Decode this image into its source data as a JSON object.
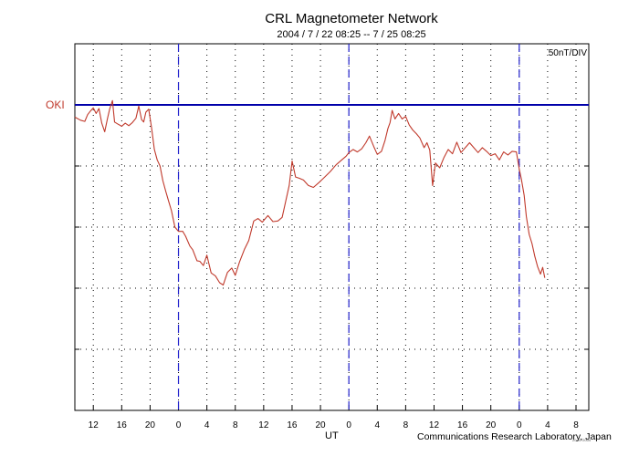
{
  "chart_data": {
    "type": "line",
    "title": "CRL Magnetometer Network",
    "subtitle": "2004 / 7 / 22   08:25 --  7 / 25   08:25",
    "xlabel": "UT",
    "scale_label": "50nT/DIV",
    "credit": "Communications Research Laboratory, Japan",
    "stamp": "20 07 2004",
    "grid": true,
    "x_range_hours": [
      -14.6,
      57.8
    ],
    "y_range_div": [
      -5.0,
      1.0
    ],
    "x_tick_positions_hours": [
      -12,
      -8,
      -4,
      0,
      4,
      8,
      12,
      16,
      20,
      24,
      28,
      32,
      36,
      40,
      44,
      48,
      52,
      56
    ],
    "x_tick_labels": [
      "12",
      "16",
      "20",
      "0",
      "4",
      "8",
      "12",
      "16",
      "20",
      "0",
      "4",
      "8",
      "12",
      "16",
      "20",
      "0",
      "4",
      "8"
    ],
    "day_boundaries_hours": [
      0,
      24,
      48
    ],
    "y_ticks_div": [
      -4,
      -3,
      -2,
      -1,
      0
    ],
    "baseline": {
      "label": "OKI",
      "value_div": 0,
      "color": "#0000aa"
    },
    "series": [
      {
        "name": "OKI",
        "color": "#c0392b",
        "points": [
          [
            -14.6,
            -0.2
          ],
          [
            -13.8,
            -0.25
          ],
          [
            -13.2,
            -0.27
          ],
          [
            -12.8,
            -0.16
          ],
          [
            -12.4,
            -0.1
          ],
          [
            -12.0,
            -0.05
          ],
          [
            -11.6,
            -0.14
          ],
          [
            -11.2,
            -0.06
          ],
          [
            -10.8,
            -0.3
          ],
          [
            -10.4,
            -0.44
          ],
          [
            -10.0,
            -0.22
          ],
          [
            -9.7,
            -0.07
          ],
          [
            -9.3,
            0.07
          ],
          [
            -9.0,
            -0.28
          ],
          [
            -8.6,
            -0.31
          ],
          [
            -8.0,
            -0.35
          ],
          [
            -7.5,
            -0.3
          ],
          [
            -7.0,
            -0.34
          ],
          [
            -6.5,
            -0.29
          ],
          [
            -6.0,
            -0.22
          ],
          [
            -5.6,
            -0.02
          ],
          [
            -5.2,
            -0.24
          ],
          [
            -4.9,
            -0.28
          ],
          [
            -4.6,
            -0.12
          ],
          [
            -4.2,
            -0.07
          ],
          [
            -3.8,
            -0.37
          ],
          [
            -3.4,
            -0.73
          ],
          [
            -3.0,
            -0.9
          ],
          [
            -2.6,
            -1.0
          ],
          [
            -2.2,
            -1.24
          ],
          [
            -1.8,
            -1.41
          ],
          [
            -1.4,
            -1.57
          ],
          [
            -1.0,
            -1.73
          ],
          [
            -0.5,
            -2.0
          ],
          [
            0.0,
            -2.07
          ],
          [
            0.6,
            -2.07
          ],
          [
            1.0,
            -2.15
          ],
          [
            1.6,
            -2.31
          ],
          [
            2.0,
            -2.37
          ],
          [
            2.6,
            -2.55
          ],
          [
            3.0,
            -2.56
          ],
          [
            3.5,
            -2.63
          ],
          [
            4.0,
            -2.46
          ],
          [
            4.6,
            -2.75
          ],
          [
            5.2,
            -2.8
          ],
          [
            5.8,
            -2.91
          ],
          [
            6.3,
            -2.95
          ],
          [
            6.9,
            -2.74
          ],
          [
            7.5,
            -2.67
          ],
          [
            8.0,
            -2.79
          ],
          [
            8.6,
            -2.57
          ],
          [
            9.3,
            -2.36
          ],
          [
            9.9,
            -2.22
          ],
          [
            10.6,
            -1.9
          ],
          [
            11.2,
            -1.86
          ],
          [
            11.8,
            -1.92
          ],
          [
            12.6,
            -1.81
          ],
          [
            13.3,
            -1.91
          ],
          [
            14.0,
            -1.9
          ],
          [
            14.6,
            -1.84
          ],
          [
            15.0,
            -1.63
          ],
          [
            15.6,
            -1.32
          ],
          [
            16.0,
            -0.92
          ],
          [
            16.5,
            -1.18
          ],
          [
            17.0,
            -1.2
          ],
          [
            17.6,
            -1.23
          ],
          [
            18.3,
            -1.32
          ],
          [
            19.0,
            -1.35
          ],
          [
            19.8,
            -1.27
          ],
          [
            20.6,
            -1.18
          ],
          [
            21.4,
            -1.09
          ],
          [
            22.2,
            -0.98
          ],
          [
            23.0,
            -0.9
          ],
          [
            23.6,
            -0.84
          ],
          [
            24.0,
            -0.78
          ],
          [
            24.6,
            -0.73
          ],
          [
            25.2,
            -0.77
          ],
          [
            25.8,
            -0.72
          ],
          [
            26.4,
            -0.62
          ],
          [
            26.9,
            -0.51
          ],
          [
            27.5,
            -0.68
          ],
          [
            28.0,
            -0.81
          ],
          [
            28.6,
            -0.76
          ],
          [
            29.1,
            -0.58
          ],
          [
            29.5,
            -0.39
          ],
          [
            29.8,
            -0.29
          ],
          [
            30.1,
            -0.09
          ],
          [
            30.5,
            -0.23
          ],
          [
            31.0,
            -0.14
          ],
          [
            31.5,
            -0.23
          ],
          [
            32.0,
            -0.19
          ],
          [
            32.5,
            -0.33
          ],
          [
            33.0,
            -0.41
          ],
          [
            33.5,
            -0.47
          ],
          [
            34.0,
            -0.54
          ],
          [
            34.6,
            -0.7
          ],
          [
            35.0,
            -0.62
          ],
          [
            35.4,
            -0.74
          ],
          [
            35.8,
            -1.32
          ],
          [
            36.2,
            -0.95
          ],
          [
            36.8,
            -1.03
          ],
          [
            37.4,
            -0.86
          ],
          [
            38.0,
            -0.73
          ],
          [
            38.6,
            -0.8
          ],
          [
            39.2,
            -0.61
          ],
          [
            39.8,
            -0.78
          ],
          [
            40.4,
            -0.7
          ],
          [
            41.0,
            -0.62
          ],
          [
            41.6,
            -0.7
          ],
          [
            42.2,
            -0.78
          ],
          [
            42.8,
            -0.7
          ],
          [
            43.4,
            -0.76
          ],
          [
            44.0,
            -0.83
          ],
          [
            44.6,
            -0.8
          ],
          [
            45.2,
            -0.9
          ],
          [
            45.8,
            -0.77
          ],
          [
            46.4,
            -0.82
          ],
          [
            47.0,
            -0.76
          ],
          [
            47.6,
            -0.77
          ],
          [
            48.0,
            -1.05
          ],
          [
            48.3,
            -1.21
          ],
          [
            48.7,
            -1.48
          ],
          [
            49.0,
            -1.83
          ],
          [
            49.4,
            -2.12
          ],
          [
            49.8,
            -2.27
          ],
          [
            50.2,
            -2.48
          ],
          [
            50.6,
            -2.65
          ],
          [
            51.0,
            -2.77
          ],
          [
            51.3,
            -2.66
          ],
          [
            51.6,
            -2.83
          ]
        ]
      }
    ]
  }
}
